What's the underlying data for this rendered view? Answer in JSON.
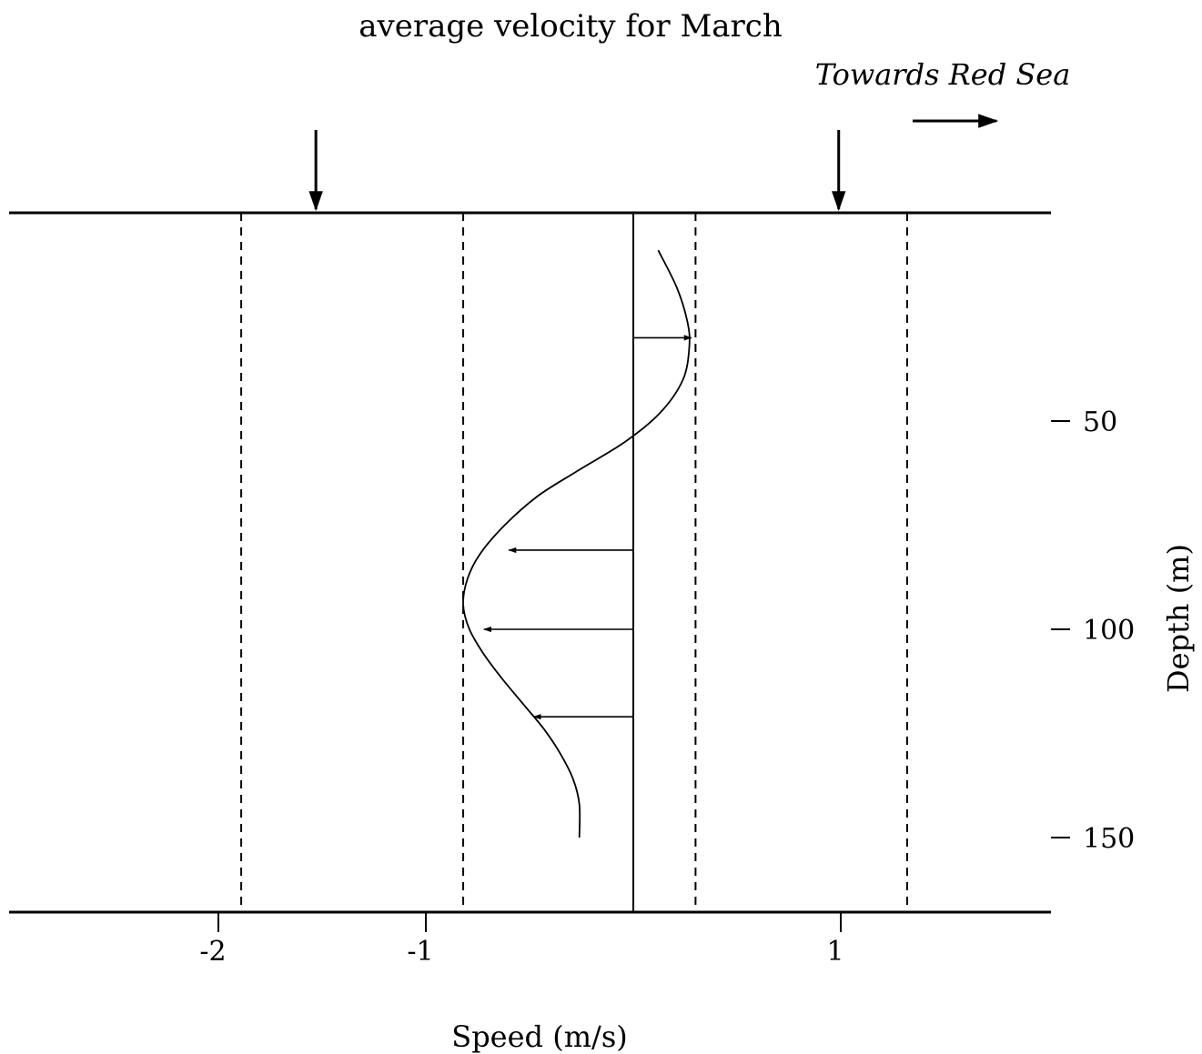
{
  "chart_data": {
    "type": "line",
    "title": "average velocity for March",
    "annotation": "Towards Red Sea",
    "xlabel": "Speed (m/s)",
    "ylabel": "Depth (m)",
    "xlim": [
      -2.9,
      2.0
    ],
    "ylim": [
      0,
      168
    ],
    "y_inverted": true,
    "grid": false,
    "x_ticks": [
      -2,
      -1,
      1
    ],
    "x_tick_labels": [
      "-2",
      "-1",
      "1"
    ],
    "y_ticks": [
      50,
      100,
      150
    ],
    "y_tick_labels": [
      "50",
      "100",
      "150"
    ],
    "dashed_reference_lines_x": [
      -1.89,
      -0.82,
      0.3,
      1.32
    ],
    "top_marker_arrows_x": [
      -1.53,
      0.99
    ],
    "profile": {
      "depth": [
        9,
        18,
        26,
        32,
        40,
        48,
        55,
        62,
        68,
        75,
        82,
        88,
        94,
        100,
        106,
        112,
        118,
        124,
        130,
        136,
        142,
        150
      ],
      "speed": [
        0.12,
        0.21,
        0.26,
        0.27,
        0.24,
        0.13,
        -0.04,
        -0.27,
        -0.46,
        -0.62,
        -0.74,
        -0.8,
        -0.82,
        -0.79,
        -0.72,
        -0.63,
        -0.53,
        -0.43,
        -0.35,
        -0.29,
        -0.26,
        -0.26
      ]
    },
    "velocity_arrows": [
      {
        "depth": 30,
        "speed": 0.28
      },
      {
        "depth": 81,
        "speed": -0.6
      },
      {
        "depth": 100,
        "speed": -0.72
      },
      {
        "depth": 121,
        "speed": -0.48
      }
    ]
  }
}
